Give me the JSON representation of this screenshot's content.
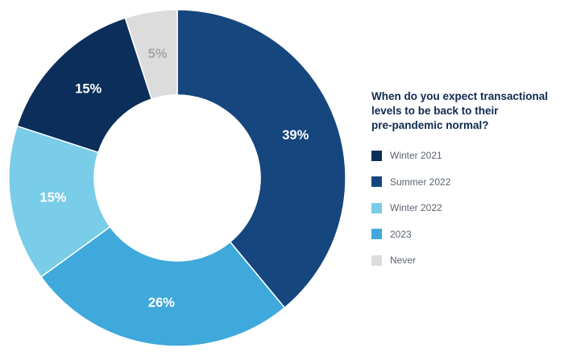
{
  "chart_data": {
    "type": "pie",
    "donut": true,
    "title": "When do you expect transactional levels to be back to their pre-pandemic normal?",
    "title_lines": [
      "When do you expect transactional",
      "levels to be back to their",
      "pre-pandemic normal?"
    ],
    "slices": [
      {
        "label": "Summer 2022",
        "value": 39,
        "display": "39%",
        "color": "#16467e",
        "label_color": "#ffffff"
      },
      {
        "label": "2023",
        "value": 26,
        "display": "26%",
        "color": "#3fa9db",
        "label_color": "#ffffff"
      },
      {
        "label": "Winter 2022",
        "value": 15,
        "display": "15%",
        "color": "#79cde8",
        "label_color": "#ffffff"
      },
      {
        "label": "Winter 2021",
        "value": 15,
        "display": "15%",
        "color": "#0b2e5a",
        "label_color": "#ffffff"
      },
      {
        "label": "Never",
        "value": 5,
        "display": "5%",
        "color": "#dcdcdc",
        "label_color": "#a6a6a6"
      }
    ],
    "legend": {
      "placement": "right",
      "entries": [
        {
          "label": "Winter 2021",
          "color": "#0b2e5a"
        },
        {
          "label": "Summer 2022",
          "color": "#16467e"
        },
        {
          "label": "Winter 2022",
          "color": "#79cde8"
        },
        {
          "label": "2023",
          "color": "#3fa9db"
        },
        {
          "label": "Never",
          "color": "#dcdcdc"
        }
      ]
    }
  }
}
